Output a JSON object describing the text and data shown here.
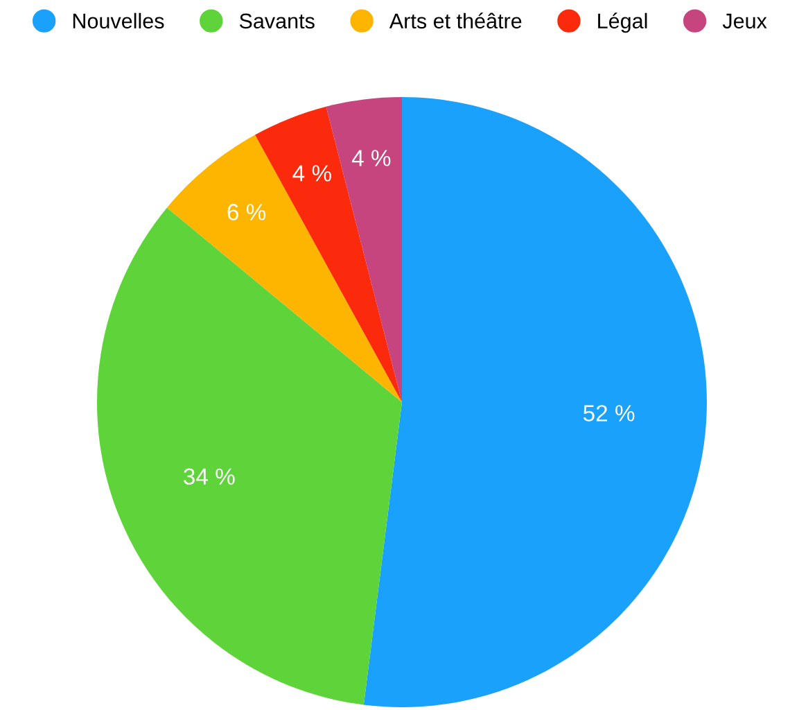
{
  "chart_data": {
    "type": "pie",
    "categories": [
      "Nouvelles",
      "Savants",
      "Arts et théâtre",
      "Légal",
      "Jeux"
    ],
    "values": [
      52,
      34,
      6,
      4,
      4
    ],
    "colors": [
      "#1aa1fb",
      "#5fd43a",
      "#fdb500",
      "#fb2a0c",
      "#c6457f"
    ],
    "value_labels": [
      "52 %",
      "34 %",
      "6 %",
      "4 %",
      "4 %"
    ],
    "legend": "top"
  }
}
